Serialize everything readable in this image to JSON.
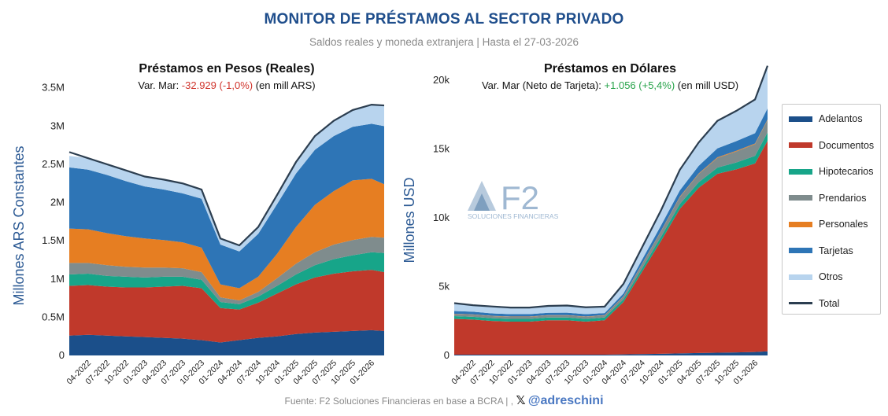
{
  "header": {
    "title": "MONITOR DE PRÉSTAMOS AL SECTOR PRIVADO",
    "subtitle": "Saldos reales y moneda extranjera | Hasta el 27-03-2026"
  },
  "footer": {
    "source": "Fuente: F2 Soluciones Financieras en base a BCRA  |  ,",
    "x_glyph": "𝕏",
    "handle": "@adreschini"
  },
  "logo": {
    "name": "F2",
    "tagline": "SOLUCIONES FINANCIERAS"
  },
  "legend": {
    "items": [
      {
        "label": "Adelantos",
        "color": "#1b4f8a"
      },
      {
        "label": "Documentos",
        "color": "#c0392b"
      },
      {
        "label": "Hipotecarios",
        "color": "#17a589"
      },
      {
        "label": "Prendarios",
        "color": "#7f8c8d"
      },
      {
        "label": "Personales",
        "color": "#e67e22"
      },
      {
        "label": "Tarjetas",
        "color": "#2e75b6"
      },
      {
        "label": "Otros",
        "color": "#b8d4ee"
      },
      {
        "label": "Total",
        "color": "#2c3e50"
      }
    ]
  },
  "chart_data": [
    {
      "type": "area",
      "stacked": true,
      "title": "Préstamos en Pesos (Reales)",
      "var_prefix": "Var. Mar: ",
      "var_value": "-32.929 (-1,0%)",
      "var_color": "#d0342c",
      "var_suffix": " (en mill ARS)",
      "ylabel": "Millones ARS Constantes",
      "ylim": [
        0,
        3600000
      ],
      "yticks": [
        0,
        500000,
        1000000,
        1500000,
        2000000,
        2500000,
        3000000,
        3500000
      ],
      "ytick_labels": [
        "0",
        "0.5M",
        "1M",
        "1.5M",
        "2M",
        "2.5M",
        "3M",
        "3.5M"
      ],
      "x": [
        "2022-01",
        "2022-04",
        "2022-07",
        "2022-10",
        "2023-01",
        "2023-04",
        "2023-07",
        "2023-10",
        "2024-01",
        "2024-04",
        "2024-07",
        "2024-10",
        "2025-01",
        "2025-04",
        "2025-07",
        "2025-10",
        "2026-01",
        "2026-03"
      ],
      "xtick_labels": [
        "04-2022",
        "07-2022",
        "10-2022",
        "01-2023",
        "04-2023",
        "07-2023",
        "10-2023",
        "01-2024",
        "04-2024",
        "07-2024",
        "10-2024",
        "01-2025",
        "04-2025",
        "07-2025",
        "10-2025",
        "01-2026"
      ],
      "series": [
        {
          "name": "Adelantos",
          "values": [
            260000,
            270000,
            260000,
            250000,
            240000,
            230000,
            220000,
            200000,
            170000,
            200000,
            230000,
            250000,
            280000,
            300000,
            310000,
            320000,
            330000,
            320000
          ]
        },
        {
          "name": "Documentos",
          "values": [
            650000,
            650000,
            640000,
            640000,
            650000,
            670000,
            690000,
            680000,
            450000,
            400000,
            460000,
            560000,
            650000,
            720000,
            760000,
            780000,
            790000,
            770000
          ]
        },
        {
          "name": "Hipotecarios",
          "values": [
            150000,
            150000,
            140000,
            140000,
            130000,
            130000,
            120000,
            110000,
            80000,
            70000,
            80000,
            100000,
            130000,
            160000,
            190000,
            210000,
            230000,
            250000
          ]
        },
        {
          "name": "Prendarios",
          "values": [
            150000,
            140000,
            140000,
            130000,
            130000,
            120000,
            110000,
            100000,
            60000,
            50000,
            60000,
            100000,
            140000,
            170000,
            190000,
            200000,
            200000,
            200000
          ]
        },
        {
          "name": "Personales",
          "values": [
            450000,
            440000,
            420000,
            400000,
            380000,
            360000,
            340000,
            320000,
            170000,
            160000,
            200000,
            320000,
            480000,
            620000,
            700000,
            780000,
            760000,
            700000
          ]
        },
        {
          "name": "Tarjetas",
          "values": [
            800000,
            780000,
            760000,
            720000,
            680000,
            660000,
            640000,
            640000,
            520000,
            480000,
            560000,
            650000,
            700000,
            720000,
            720000,
            700000,
            720000,
            760000
          ]
        },
        {
          "name": "Otros",
          "values": [
            150000,
            150000,
            140000,
            140000,
            130000,
            130000,
            130000,
            120000,
            80000,
            80000,
            90000,
            120000,
            150000,
            180000,
            200000,
            220000,
            250000,
            270000
          ]
        }
      ],
      "total": [
        2660000,
        2580000,
        2500000,
        2420000,
        2340000,
        2300000,
        2250000,
        2170000,
        1530000,
        1440000,
        1680000,
        2100000,
        2530000,
        2870000,
        3070000,
        3210000,
        3280000,
        3270000
      ]
    },
    {
      "type": "area",
      "stacked": true,
      "title": "Préstamos en Dólares",
      "var_prefix": "Var. Mar (Neto de Tarjeta): ",
      "var_value": "+1.056 (+5,4%)",
      "var_color": "#27a34a",
      "var_suffix": " (en mill USD)",
      "ylabel": "Millones USD",
      "ylim": [
        0,
        20800
      ],
      "yticks": [
        0,
        5000,
        10000,
        15000,
        20000
      ],
      "ytick_labels": [
        "0",
        "5k",
        "10k",
        "15k",
        "20k"
      ],
      "x": [
        "2022-01",
        "2022-04",
        "2022-07",
        "2022-10",
        "2023-01",
        "2023-04",
        "2023-07",
        "2023-10",
        "2024-01",
        "2024-04",
        "2024-07",
        "2024-10",
        "2025-01",
        "2025-04",
        "2025-07",
        "2025-10",
        "2026-01",
        "2026-03"
      ],
      "xtick_labels": [
        "04-2022",
        "07-2022",
        "10-2022",
        "01-2023",
        "04-2023",
        "07-2023",
        "10-2023",
        "01-2024",
        "04-2024",
        "07-2024",
        "10-2024",
        "01-2025",
        "04-2025",
        "07-2025",
        "10-2025",
        "01-2026"
      ],
      "series": [
        {
          "name": "Adelantos",
          "values": [
            60,
            60,
            60,
            60,
            60,
            60,
            60,
            60,
            60,
            80,
            100,
            120,
            150,
            180,
            200,
            220,
            250,
            300
          ]
        },
        {
          "name": "Documentos",
          "values": [
            2600,
            2550,
            2450,
            2400,
            2400,
            2500,
            2500,
            2400,
            2500,
            3800,
            6000,
            8200,
            10500,
            12000,
            13000,
            13300,
            13700,
            15300
          ]
        },
        {
          "name": "Hipotecarios",
          "values": [
            200,
            200,
            200,
            200,
            200,
            200,
            200,
            200,
            200,
            200,
            250,
            300,
            350,
            400,
            450,
            500,
            550,
            600
          ]
        },
        {
          "name": "Prendarios",
          "values": [
            150,
            150,
            150,
            150,
            150,
            150,
            150,
            150,
            150,
            200,
            300,
            400,
            500,
            600,
            700,
            800,
            850,
            900
          ]
        },
        {
          "name": "Personales",
          "values": [
            20,
            20,
            20,
            20,
            20,
            20,
            20,
            20,
            20,
            20,
            30,
            30,
            40,
            40,
            50,
            50,
            50,
            50
          ]
        },
        {
          "name": "Tarjetas",
          "values": [
            200,
            200,
            180,
            170,
            170,
            170,
            180,
            170,
            150,
            200,
            300,
            400,
            450,
            550,
            650,
            700,
            750,
            800
          ]
        },
        {
          "name": "Otros",
          "values": [
            570,
            520,
            500,
            480,
            480,
            500,
            520,
            500,
            470,
            700,
            900,
            1100,
            1500,
            1700,
            2000,
            2200,
            2450,
            3100
          ]
        }
      ],
      "total": [
        3800,
        3650,
        3560,
        3480,
        3480,
        3600,
        3630,
        3500,
        3550,
        5200,
        7880,
        10550,
        13490,
        15470,
        17050,
        17770,
        18600,
        21050
      ]
    }
  ]
}
